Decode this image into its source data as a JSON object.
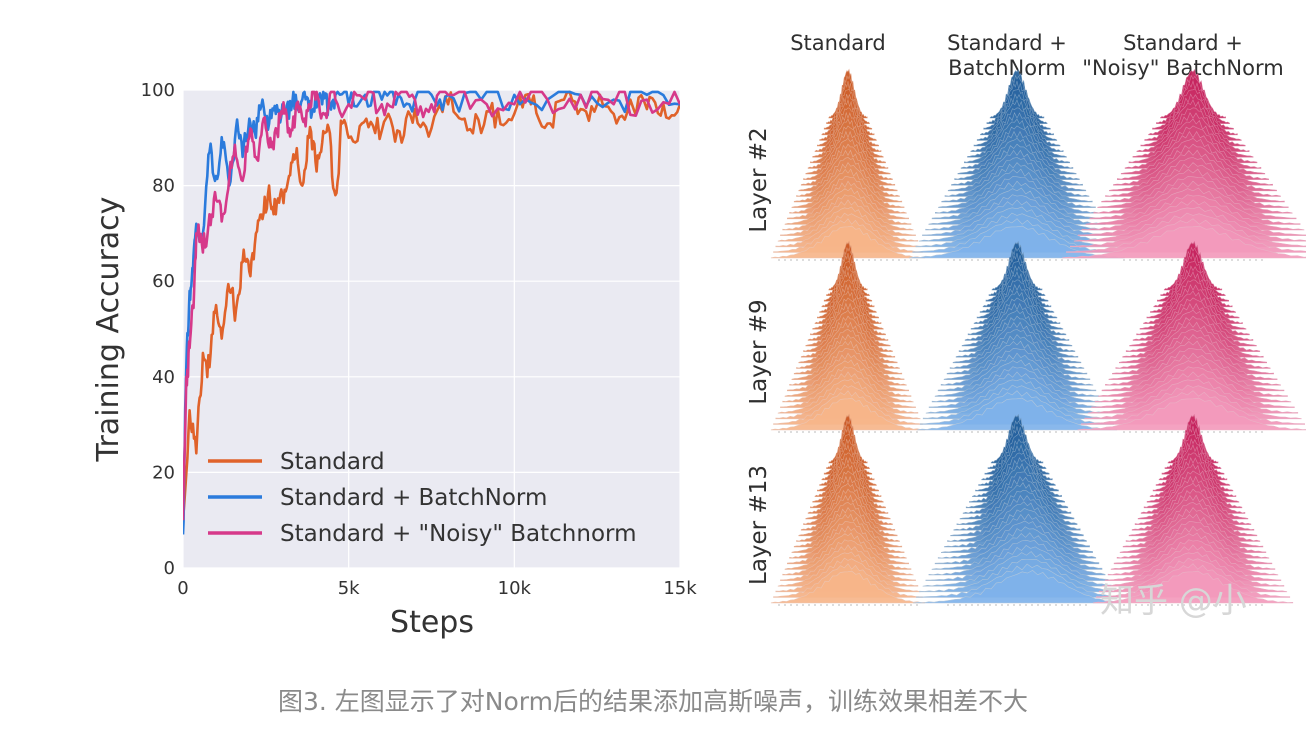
{
  "chart_data": [
    {
      "type": "line",
      "title": "",
      "xlabel": "Steps",
      "ylabel": "Training Accuracy",
      "xlim": [
        0,
        15000
      ],
      "ylim": [
        0,
        100
      ],
      "xticks": [
        0,
        5000,
        10000,
        15000
      ],
      "xtick_labels": [
        "0",
        "5k",
        "10k",
        "15k"
      ],
      "yticks": [
        0,
        20,
        40,
        60,
        80,
        100
      ],
      "ytick_labels": [
        "0",
        "20",
        "40",
        "60",
        "80",
        "100"
      ],
      "grid": true,
      "legend_position": "bottom-left",
      "series": [
        {
          "name": "Standard",
          "color": "#e0622a",
          "x": [
            0,
            200,
            400,
            600,
            800,
            1000,
            1200,
            1400,
            1600,
            1800,
            2000,
            2200,
            2400,
            2600,
            2800,
            3000,
            3200,
            3400,
            3600,
            3800,
            4000,
            4200,
            4400,
            4600,
            4800,
            5000,
            5400,
            5800,
            6200,
            6600,
            7000,
            7500,
            8000,
            8500,
            9000,
            9500,
            10000,
            10500,
            11000,
            11500,
            12000,
            12500,
            13000,
            13500,
            14000,
            14500,
            15000
          ],
          "y": [
            10,
            33,
            24,
            45,
            42,
            55,
            50,
            58,
            54,
            64,
            62,
            70,
            73,
            80,
            74,
            78,
            82,
            86,
            80,
            90,
            85,
            89,
            92,
            78,
            93,
            90,
            93,
            91,
            95,
            89,
            96,
            92,
            97,
            94,
            91,
            96,
            95,
            97,
            93,
            98,
            96,
            97,
            95,
            98,
            96,
            97,
            97
          ]
        },
        {
          "name": "Standard + BatchNorm",
          "color": "#2b7bdc",
          "x": [
            0,
            100,
            200,
            300,
            400,
            600,
            800,
            1000,
            1200,
            1400,
            1600,
            1800,
            2000,
            2200,
            2400,
            2600,
            2800,
            3000,
            3200,
            3400,
            3600,
            3800,
            4000,
            4200,
            4400,
            4600,
            5000,
            5500,
            6000,
            6500,
            7000,
            7500,
            8000,
            9000,
            10000,
            11000,
            12000,
            13000,
            14000,
            15000
          ],
          "y": [
            7,
            42,
            58,
            62,
            72,
            70,
            87,
            82,
            88,
            80,
            92,
            86,
            94,
            90,
            98,
            93,
            95,
            97,
            94,
            99,
            98,
            96,
            99,
            97,
            98,
            99,
            97,
            99,
            98,
            99,
            98,
            99,
            99,
            98,
            99,
            98,
            99,
            98,
            99,
            97
          ]
        },
        {
          "name": "Standard + \"Noisy\" Batchnorm",
          "color": "#d6398a",
          "x": [
            0,
            100,
            200,
            300,
            400,
            600,
            800,
            1000,
            1200,
            1400,
            1600,
            1800,
            2000,
            2200,
            2400,
            2600,
            2800,
            3000,
            3200,
            3400,
            3600,
            3800,
            4000,
            4200,
            4400,
            4600,
            5000,
            5500,
            6000,
            6500,
            7000,
            7500,
            8000,
            9000,
            10000,
            11000,
            12000,
            13000,
            14000,
            15000
          ],
          "y": [
            10,
            40,
            46,
            55,
            70,
            66,
            74,
            77,
            74,
            82,
            86,
            81,
            90,
            86,
            93,
            88,
            92,
            95,
            92,
            96,
            94,
            97,
            98,
            95,
            97,
            98,
            97,
            98,
            97,
            99,
            98,
            97,
            99,
            98,
            97,
            98,
            99,
            97,
            98,
            97
          ]
        }
      ]
    },
    {
      "type": "ridgeline",
      "columns": [
        "Standard",
        "Standard + BatchNorm",
        "Standard + \"Noisy\" BatchNorm"
      ],
      "column_title_lines": [
        [
          "Standard"
        ],
        [
          "Standard +",
          "BatchNorm"
        ],
        [
          "Standard +",
          "\"Noisy\" BatchNorm"
        ]
      ],
      "rows": [
        "Layer #2",
        "Layer #9",
        "Layer #13"
      ],
      "column_colors": [
        {
          "dark": "#c9551f",
          "light": "#f6b58a"
        },
        {
          "dark": "#1f5c98",
          "light": "#7fb2ea"
        },
        {
          "dark": "#c41f5a",
          "light": "#f39abc"
        }
      ]
    }
  ],
  "watermark": "知乎 @小",
  "caption": "图3. 左图显示了对Norm后的结果添加高斯噪声，训练效果相差不大"
}
